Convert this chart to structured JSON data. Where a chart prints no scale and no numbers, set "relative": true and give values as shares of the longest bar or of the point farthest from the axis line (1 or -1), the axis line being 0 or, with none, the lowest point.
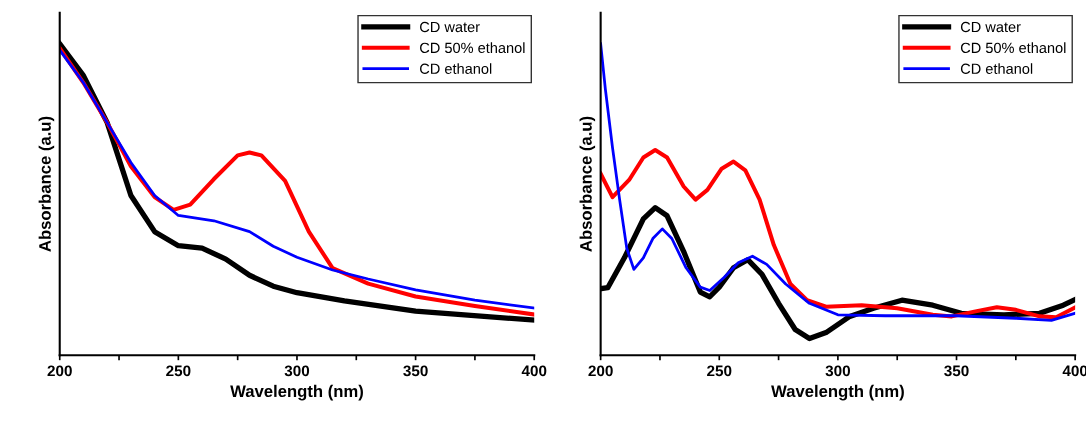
{
  "chart_data": [
    {
      "type": "line",
      "relative": true,
      "xlabel": "Wavelength (nm)",
      "ylabel": "Absorbance (a.u)",
      "xlim": [
        200,
        400
      ],
      "xticks": [
        200,
        {
          "value": 225,
          "label": null
        },
        250,
        {
          "value": 275,
          "label": null
        },
        300,
        {
          "value": 325,
          "label": null
        },
        350,
        {
          "value": 375,
          "label": null
        },
        400
      ],
      "tick_labels": "x",
      "legend": "top right",
      "grid": false,
      "series": [
        {
          "name": "CD water",
          "color": "#000000",
          "x": [
            200,
            210,
            220,
            230,
            240,
            250,
            260,
            270,
            280,
            290,
            300,
            320,
            350,
            400
          ],
          "values": [
            1.0,
            0.898,
            0.747,
            0.513,
            0.397,
            0.352,
            0.344,
            0.309,
            0.257,
            0.222,
            0.201,
            0.175,
            0.142,
            0.113
          ]
        },
        {
          "name": "CD 50% ethanol",
          "color": "#ff0000",
          "x": [
            200,
            210,
            220,
            230,
            240,
            248,
            255,
            265,
            275,
            280,
            285,
            295,
            305,
            315,
            330,
            350,
            375,
            400
          ],
          "values": [
            0.986,
            0.875,
            0.747,
            0.607,
            0.508,
            0.467,
            0.484,
            0.566,
            0.642,
            0.651,
            0.642,
            0.56,
            0.397,
            0.28,
            0.23,
            0.189,
            0.158,
            0.131
          ]
        },
        {
          "name": "CD ethanol",
          "color": "#0000ff",
          "x": [
            200,
            210,
            220,
            230,
            240,
            250,
            265,
            280,
            290,
            300,
            315,
            330,
            350,
            375,
            400
          ],
          "values": [
            0.98,
            0.875,
            0.747,
            0.619,
            0.513,
            0.449,
            0.432,
            0.397,
            0.35,
            0.315,
            0.274,
            0.245,
            0.21,
            0.177,
            0.152
          ]
        }
      ]
    },
    {
      "type": "line",
      "relative": true,
      "xlabel": "Wavelength (nm)",
      "ylabel": "Absorbance (a.u)",
      "xlim": [
        200,
        400
      ],
      "xticks": [
        200,
        {
          "value": 225,
          "label": null
        },
        250,
        {
          "value": 275,
          "label": null
        },
        300,
        {
          "value": 325,
          "label": null
        },
        350,
        {
          "value": 375,
          "label": null
        },
        400
      ],
      "tick_labels": "x",
      "legend": "top right",
      "grid": false,
      "series": [
        {
          "name": "CD water",
          "color": "#000000",
          "x": [
            200,
            203,
            210,
            218,
            223,
            228,
            235,
            242,
            246,
            250,
            256,
            262,
            268,
            275,
            282,
            288,
            295,
            305,
            315,
            327,
            340,
            352,
            370,
            385,
            395,
            400
          ],
          "values": [
            0.214,
            0.217,
            0.313,
            0.438,
            0.474,
            0.448,
            0.333,
            0.203,
            0.188,
            0.219,
            0.281,
            0.307,
            0.26,
            0.167,
            0.083,
            0.054,
            0.073,
            0.125,
            0.151,
            0.177,
            0.161,
            0.135,
            0.13,
            0.135,
            0.161,
            0.179
          ]
        },
        {
          "name": "CD 50% ethanol",
          "color": "#ff0000",
          "x": [
            200,
            205,
            212,
            218,
            223,
            228,
            235,
            240,
            245,
            251,
            256,
            261,
            267,
            273,
            280,
            287,
            295,
            310,
            325,
            340,
            348,
            358,
            367,
            375,
            385,
            392,
            400
          ],
          "values": [
            0.583,
            0.508,
            0.563,
            0.635,
            0.659,
            0.635,
            0.542,
            0.5,
            0.531,
            0.599,
            0.622,
            0.594,
            0.5,
            0.354,
            0.229,
            0.177,
            0.156,
            0.161,
            0.151,
            0.13,
            0.125,
            0.141,
            0.154,
            0.146,
            0.125,
            0.122,
            0.154
          ]
        },
        {
          "name": "CD ethanol",
          "color": "#0000ff",
          "x": [
            200,
            202,
            205,
            208,
            211,
            214,
            218,
            222,
            226,
            230,
            236,
            242,
            246,
            252,
            258,
            264,
            270,
            278,
            288,
            300,
            320,
            350,
            375,
            390,
            400
          ],
          "values": [
            1.0,
            0.854,
            0.667,
            0.5,
            0.344,
            0.276,
            0.313,
            0.375,
            0.406,
            0.375,
            0.281,
            0.219,
            0.208,
            0.25,
            0.297,
            0.318,
            0.292,
            0.229,
            0.167,
            0.13,
            0.127,
            0.127,
            0.119,
            0.112,
            0.135
          ]
        }
      ]
    }
  ]
}
